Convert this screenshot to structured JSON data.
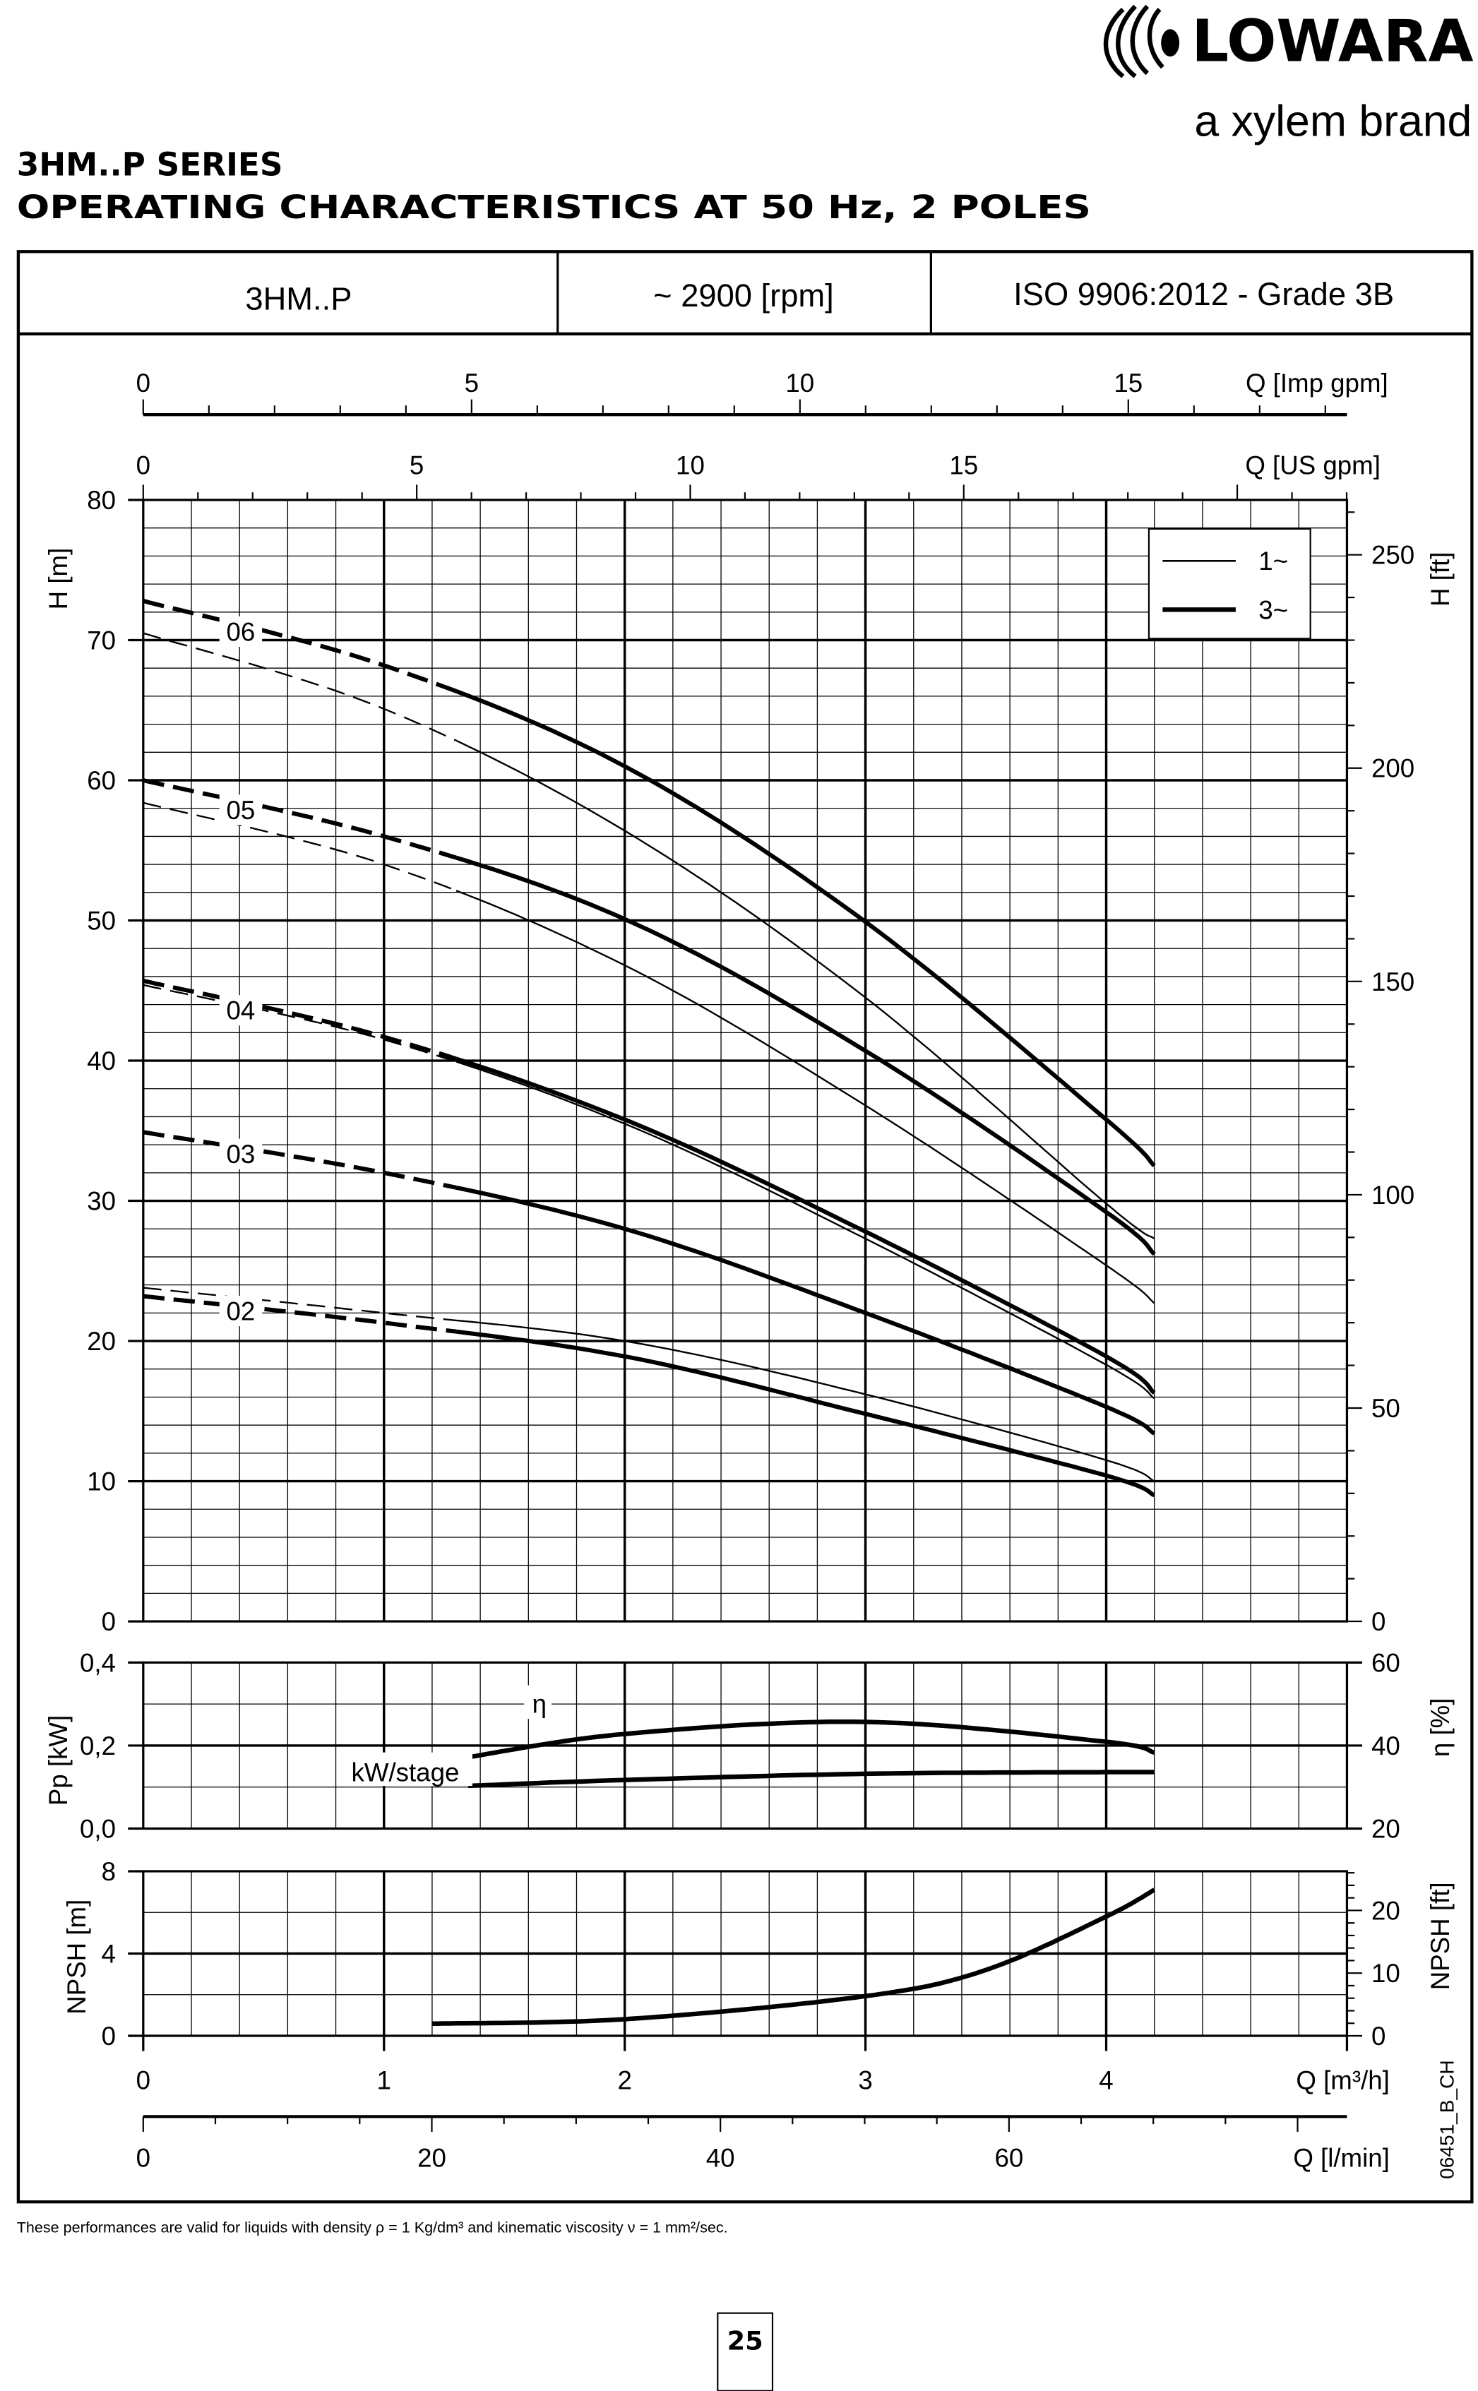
{
  "brand": {
    "logo_text": "LOWARA",
    "tagline": "a xylem brand"
  },
  "title": {
    "line1": "3HM..P SERIES",
    "line2": "OPERATING CHARACTERISTICS AT 50 Hz, 2 POLES"
  },
  "header": {
    "model": "3HM..P",
    "speed": "~ 2900 [rpm]",
    "standard": "ISO 9906:2012 - Grade 3B"
  },
  "footnote": "These performances are valid for liquids with density ρ = 1 Kg/dm³  and kinematic viscosity ν = 1 mm²/sec.",
  "page_number": "25",
  "drawing_code": "06451_B_CH",
  "chart_data": [
    {
      "type": "line",
      "xlabel": "Q [m³/h]",
      "ylabel": "H [m]",
      "ylabel_right": "H [ft]",
      "xlim": [
        0,
        5
      ],
      "ylim": [
        0,
        80
      ],
      "x_ticks": [
        0,
        1,
        2,
        3,
        4
      ],
      "y_ticks": [
        0,
        10,
        20,
        30,
        40,
        50,
        60,
        70,
        80
      ],
      "y_right_ticks": [
        0,
        50,
        100,
        150,
        200,
        250
      ],
      "top_axes": [
        {
          "label": "Q [Imp gpm]",
          "ticks": [
            0,
            5,
            10,
            15
          ]
        },
        {
          "label": "Q [US gpm]",
          "ticks": [
            0,
            5,
            10,
            15
          ]
        }
      ],
      "grid": true,
      "legend": {
        "position": "top-right",
        "entries": [
          {
            "label": "1~",
            "style": "thin"
          },
          {
            "label": "3~",
            "style": "thick"
          }
        ]
      },
      "x": [
        0,
        1,
        2,
        3,
        4,
        4.2
      ],
      "series": [
        {
          "name": "06",
          "phase": "3~",
          "values": [
            72.8,
            68.2,
            61.0,
            49.9,
            35.8,
            32.5
          ]
        },
        {
          "name": "06",
          "phase": "1~",
          "values": [
            70.5,
            65.1,
            56.4,
            44.5,
            29.8,
            27.3
          ]
        },
        {
          "name": "05",
          "phase": "3~",
          "values": [
            60.0,
            56.0,
            50.1,
            40.7,
            29.2,
            26.2
          ]
        },
        {
          "name": "05",
          "phase": "1~",
          "values": [
            58.4,
            54.0,
            46.8,
            36.8,
            25.4,
            22.7
          ]
        },
        {
          "name": "04",
          "phase": "3~",
          "values": [
            45.7,
            41.7,
            35.8,
            27.8,
            18.9,
            16.3
          ]
        },
        {
          "name": "04",
          "phase": "1~",
          "values": [
            45.4,
            41.5,
            35.5,
            27.3,
            18.3,
            15.9
          ]
        },
        {
          "name": "03",
          "phase": "3~",
          "values": [
            34.9,
            32.0,
            28.0,
            22.0,
            15.3,
            13.4
          ]
        },
        {
          "name": "02",
          "phase": "3~",
          "values": [
            23.2,
            21.3,
            18.9,
            14.8,
            10.4,
            9.0
          ]
        },
        {
          "name": "02",
          "phase": "1~",
          "values": [
            23.8,
            22.0,
            20.0,
            16.2,
            11.5,
            10.0
          ]
        }
      ]
    },
    {
      "type": "line",
      "ylabel": "Pp [kW]",
      "ylabel_right": "η [%]",
      "xlim": [
        0,
        5
      ],
      "ylim": [
        0,
        0.4
      ],
      "y_ticks": [
        "0,0",
        "0,2",
        "0,4"
      ],
      "y_right_lim": [
        20,
        60
      ],
      "y_right_ticks": [
        20,
        40,
        60
      ],
      "grid": true,
      "series": [
        {
          "name": "η",
          "axis": "right",
          "x": [
            1.35,
            2,
            3,
            4,
            4.2
          ],
          "values": [
            37.2,
            42.8,
            45.7,
            40.9,
            38.3
          ]
        },
        {
          "name": "kW/stage",
          "axis": "left",
          "x": [
            1.35,
            2,
            3,
            4,
            4.2
          ],
          "values": [
            0.103,
            0.117,
            0.132,
            0.136,
            0.136
          ]
        }
      ]
    },
    {
      "type": "line",
      "xlabel": "Q [m³/h]",
      "xlabel_bottom2": "Q [l/min]",
      "ylabel": "NPSH [m]",
      "ylabel_right": "NPSH [ft]",
      "xlim": [
        0,
        5
      ],
      "ylim": [
        0,
        8
      ],
      "y_ticks": [
        0,
        4,
        8
      ],
      "y_right_ticks": [
        0,
        10,
        20
      ],
      "x_ticks": [
        0,
        1,
        2,
        3,
        4
      ],
      "x2_ticks": [
        0,
        20,
        40,
        60
      ],
      "grid": true,
      "series": [
        {
          "x": [
            1.2,
            2,
            3,
            3.5,
            4,
            4.2
          ],
          "values": [
            0.59,
            0.81,
            1.93,
            3.2,
            5.8,
            7.1
          ]
        }
      ]
    }
  ]
}
